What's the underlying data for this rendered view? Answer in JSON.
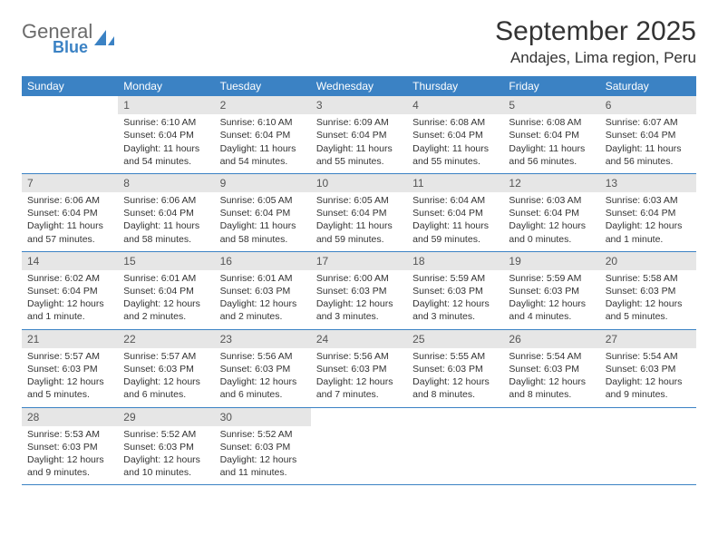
{
  "logo": {
    "word1": "General",
    "word2": "Blue"
  },
  "title": "September 2025",
  "location": "Andajes, Lima region, Peru",
  "colors": {
    "header_bg": "#3b82c4",
    "header_text": "#ffffff",
    "daynum_bg": "#e6e6e6",
    "daynum_text": "#555555",
    "body_text": "#333333",
    "rule": "#3b82c4",
    "page_bg": "#ffffff",
    "logo_gray": "#6b6b6b",
    "logo_blue": "#3b82c4"
  },
  "typography": {
    "title_fontsize": 30,
    "location_fontsize": 17,
    "dow_fontsize": 12,
    "daynum_fontsize": 12,
    "body_fontsize": 10.5
  },
  "daysOfWeek": [
    "Sunday",
    "Monday",
    "Tuesday",
    "Wednesday",
    "Thursday",
    "Friday",
    "Saturday"
  ],
  "weeks": [
    [
      {
        "n": "",
        "sunrise": "",
        "sunset": "",
        "daylight": ""
      },
      {
        "n": "1",
        "sunrise": "Sunrise: 6:10 AM",
        "sunset": "Sunset: 6:04 PM",
        "daylight": "Daylight: 11 hours and 54 minutes."
      },
      {
        "n": "2",
        "sunrise": "Sunrise: 6:10 AM",
        "sunset": "Sunset: 6:04 PM",
        "daylight": "Daylight: 11 hours and 54 minutes."
      },
      {
        "n": "3",
        "sunrise": "Sunrise: 6:09 AM",
        "sunset": "Sunset: 6:04 PM",
        "daylight": "Daylight: 11 hours and 55 minutes."
      },
      {
        "n": "4",
        "sunrise": "Sunrise: 6:08 AM",
        "sunset": "Sunset: 6:04 PM",
        "daylight": "Daylight: 11 hours and 55 minutes."
      },
      {
        "n": "5",
        "sunrise": "Sunrise: 6:08 AM",
        "sunset": "Sunset: 6:04 PM",
        "daylight": "Daylight: 11 hours and 56 minutes."
      },
      {
        "n": "6",
        "sunrise": "Sunrise: 6:07 AM",
        "sunset": "Sunset: 6:04 PM",
        "daylight": "Daylight: 11 hours and 56 minutes."
      }
    ],
    [
      {
        "n": "7",
        "sunrise": "Sunrise: 6:06 AM",
        "sunset": "Sunset: 6:04 PM",
        "daylight": "Daylight: 11 hours and 57 minutes."
      },
      {
        "n": "8",
        "sunrise": "Sunrise: 6:06 AM",
        "sunset": "Sunset: 6:04 PM",
        "daylight": "Daylight: 11 hours and 58 minutes."
      },
      {
        "n": "9",
        "sunrise": "Sunrise: 6:05 AM",
        "sunset": "Sunset: 6:04 PM",
        "daylight": "Daylight: 11 hours and 58 minutes."
      },
      {
        "n": "10",
        "sunrise": "Sunrise: 6:05 AM",
        "sunset": "Sunset: 6:04 PM",
        "daylight": "Daylight: 11 hours and 59 minutes."
      },
      {
        "n": "11",
        "sunrise": "Sunrise: 6:04 AM",
        "sunset": "Sunset: 6:04 PM",
        "daylight": "Daylight: 11 hours and 59 minutes."
      },
      {
        "n": "12",
        "sunrise": "Sunrise: 6:03 AM",
        "sunset": "Sunset: 6:04 PM",
        "daylight": "Daylight: 12 hours and 0 minutes."
      },
      {
        "n": "13",
        "sunrise": "Sunrise: 6:03 AM",
        "sunset": "Sunset: 6:04 PM",
        "daylight": "Daylight: 12 hours and 1 minute."
      }
    ],
    [
      {
        "n": "14",
        "sunrise": "Sunrise: 6:02 AM",
        "sunset": "Sunset: 6:04 PM",
        "daylight": "Daylight: 12 hours and 1 minute."
      },
      {
        "n": "15",
        "sunrise": "Sunrise: 6:01 AM",
        "sunset": "Sunset: 6:04 PM",
        "daylight": "Daylight: 12 hours and 2 minutes."
      },
      {
        "n": "16",
        "sunrise": "Sunrise: 6:01 AM",
        "sunset": "Sunset: 6:03 PM",
        "daylight": "Daylight: 12 hours and 2 minutes."
      },
      {
        "n": "17",
        "sunrise": "Sunrise: 6:00 AM",
        "sunset": "Sunset: 6:03 PM",
        "daylight": "Daylight: 12 hours and 3 minutes."
      },
      {
        "n": "18",
        "sunrise": "Sunrise: 5:59 AM",
        "sunset": "Sunset: 6:03 PM",
        "daylight": "Daylight: 12 hours and 3 minutes."
      },
      {
        "n": "19",
        "sunrise": "Sunrise: 5:59 AM",
        "sunset": "Sunset: 6:03 PM",
        "daylight": "Daylight: 12 hours and 4 minutes."
      },
      {
        "n": "20",
        "sunrise": "Sunrise: 5:58 AM",
        "sunset": "Sunset: 6:03 PM",
        "daylight": "Daylight: 12 hours and 5 minutes."
      }
    ],
    [
      {
        "n": "21",
        "sunrise": "Sunrise: 5:57 AM",
        "sunset": "Sunset: 6:03 PM",
        "daylight": "Daylight: 12 hours and 5 minutes."
      },
      {
        "n": "22",
        "sunrise": "Sunrise: 5:57 AM",
        "sunset": "Sunset: 6:03 PM",
        "daylight": "Daylight: 12 hours and 6 minutes."
      },
      {
        "n": "23",
        "sunrise": "Sunrise: 5:56 AM",
        "sunset": "Sunset: 6:03 PM",
        "daylight": "Daylight: 12 hours and 6 minutes."
      },
      {
        "n": "24",
        "sunrise": "Sunrise: 5:56 AM",
        "sunset": "Sunset: 6:03 PM",
        "daylight": "Daylight: 12 hours and 7 minutes."
      },
      {
        "n": "25",
        "sunrise": "Sunrise: 5:55 AM",
        "sunset": "Sunset: 6:03 PM",
        "daylight": "Daylight: 12 hours and 8 minutes."
      },
      {
        "n": "26",
        "sunrise": "Sunrise: 5:54 AM",
        "sunset": "Sunset: 6:03 PM",
        "daylight": "Daylight: 12 hours and 8 minutes."
      },
      {
        "n": "27",
        "sunrise": "Sunrise: 5:54 AM",
        "sunset": "Sunset: 6:03 PM",
        "daylight": "Daylight: 12 hours and 9 minutes."
      }
    ],
    [
      {
        "n": "28",
        "sunrise": "Sunrise: 5:53 AM",
        "sunset": "Sunset: 6:03 PM",
        "daylight": "Daylight: 12 hours and 9 minutes."
      },
      {
        "n": "29",
        "sunrise": "Sunrise: 5:52 AM",
        "sunset": "Sunset: 6:03 PM",
        "daylight": "Daylight: 12 hours and 10 minutes."
      },
      {
        "n": "30",
        "sunrise": "Sunrise: 5:52 AM",
        "sunset": "Sunset: 6:03 PM",
        "daylight": "Daylight: 12 hours and 11 minutes."
      },
      {
        "n": "",
        "sunrise": "",
        "sunset": "",
        "daylight": ""
      },
      {
        "n": "",
        "sunrise": "",
        "sunset": "",
        "daylight": ""
      },
      {
        "n": "",
        "sunrise": "",
        "sunset": "",
        "daylight": ""
      },
      {
        "n": "",
        "sunrise": "",
        "sunset": "",
        "daylight": ""
      }
    ]
  ]
}
